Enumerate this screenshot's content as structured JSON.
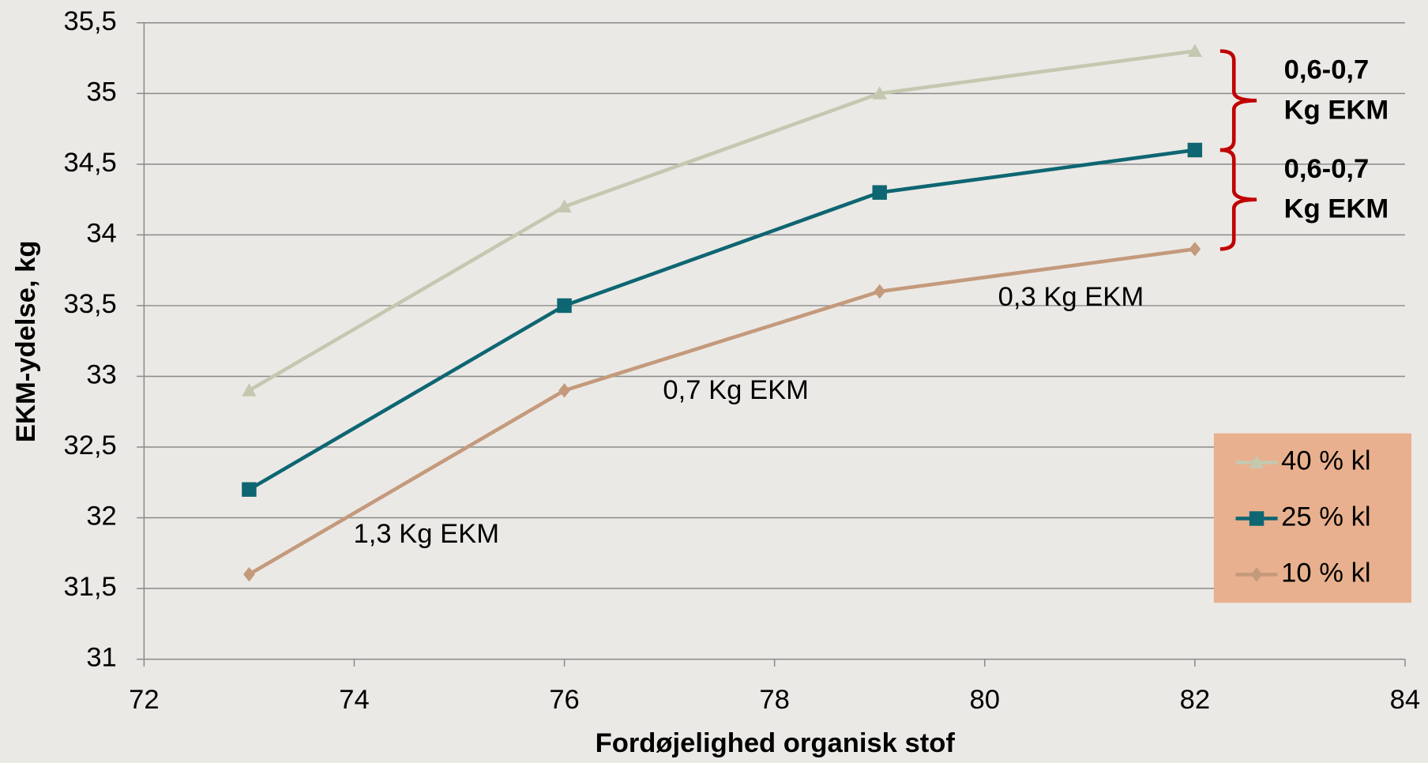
{
  "chart_data": {
    "type": "line",
    "x_label": "Fordøjelighed organisk stof",
    "y_label": "EKM-ydelse, kg",
    "x": [
      73,
      76,
      79,
      82
    ],
    "series": [
      {
        "name": "40 % kl",
        "color": "#c5c8b0",
        "marker": "triangle",
        "values": [
          32.9,
          34.2,
          35.0,
          35.3
        ]
      },
      {
        "name": "25 % kl",
        "color": "#0e6672",
        "marker": "square",
        "values": [
          32.2,
          33.5,
          34.3,
          34.6
        ]
      },
      {
        "name": "10 % kl",
        "color": "#c49a7c",
        "marker": "diamond",
        "values": [
          31.6,
          32.9,
          33.6,
          33.9
        ]
      }
    ],
    "xlim": [
      72,
      84
    ],
    "xticks": [
      72,
      74,
      76,
      78,
      80,
      82,
      84
    ],
    "ylim": [
      31,
      35.5
    ],
    "yticks": [
      31,
      {
        "value": 31.5,
        "label": "31,5"
      },
      32,
      {
        "value": 32.5,
        "label": "32,5"
      },
      33,
      {
        "value": 33.5,
        "label": "33,5"
      },
      34,
      {
        "value": 34.5,
        "label": "34,5"
      },
      35,
      {
        "value": 35.5,
        "label": "35,5"
      }
    ],
    "grid": true,
    "legend": "lower right",
    "annotations": [
      "1,3 Kg EKM",
      "0,7 Kg EKM",
      "0,3 Kg EKM"
    ],
    "bracket_annotations": [
      [
        "0,6-0,7",
        "Kg EKM"
      ],
      [
        "0,6-0,7",
        "Kg EKM"
      ]
    ]
  }
}
